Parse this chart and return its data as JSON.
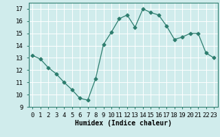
{
  "x": [
    0,
    1,
    2,
    3,
    4,
    5,
    6,
    7,
    8,
    9,
    10,
    11,
    12,
    13,
    14,
    15,
    16,
    17,
    18,
    19,
    20,
    21,
    22,
    23
  ],
  "y": [
    13.2,
    12.9,
    12.2,
    11.7,
    11.0,
    10.4,
    9.7,
    9.55,
    11.3,
    14.1,
    15.1,
    16.2,
    16.5,
    15.5,
    17.0,
    16.7,
    16.5,
    15.6,
    14.5,
    14.7,
    15.0,
    15.0,
    13.4,
    13.0
  ],
  "xlabel": "Humidex (Indice chaleur)",
  "ylim": [
    9,
    17.5
  ],
  "xlim": [
    -0.5,
    23.5
  ],
  "yticks": [
    9,
    10,
    11,
    12,
    13,
    14,
    15,
    16,
    17
  ],
  "xticks": [
    0,
    1,
    2,
    3,
    4,
    5,
    6,
    7,
    8,
    9,
    10,
    11,
    12,
    13,
    14,
    15,
    16,
    17,
    18,
    19,
    20,
    21,
    22,
    23
  ],
  "line_color": "#2d7d6e",
  "marker": "D",
  "marker_size": 2.5,
  "bg_color": "#d0ecec",
  "grid_color": "#b8d8d8",
  "label_fontsize": 7,
  "tick_fontsize": 6.5
}
